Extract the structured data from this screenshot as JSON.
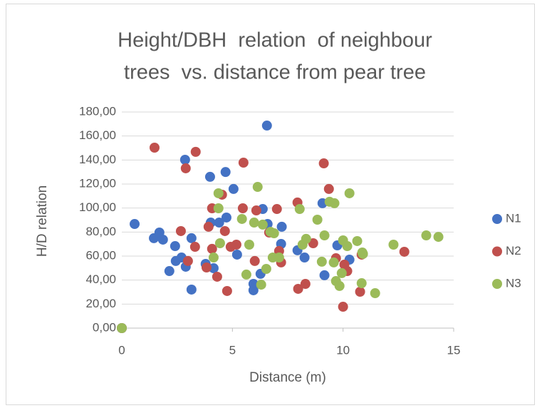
{
  "chart_data": {
    "type": "scatter",
    "title": [
      "Height/DBH  relation  of neighbour",
      "trees  vs. distance from pear tree"
    ],
    "xlabel": "Distance (m)",
    "ylabel": "H/D relation",
    "xlim": [
      0,
      15
    ],
    "xticks": [
      0,
      5,
      10,
      15
    ],
    "ylim": [
      0,
      180
    ],
    "yticks": [
      {
        "value": 0,
        "label": "0,00"
      },
      {
        "value": 20,
        "label": "20,00"
      },
      {
        "value": 40,
        "label": "40,00"
      },
      {
        "value": 60,
        "label": "60,00"
      },
      {
        "value": 80,
        "label": "80,00"
      },
      {
        "value": 100,
        "label": "100,00"
      },
      {
        "value": 120,
        "label": "120,00"
      },
      {
        "value": 140,
        "label": "140,00"
      },
      {
        "value": 160,
        "label": "160,00"
      },
      {
        "value": 180,
        "label": "180,00"
      }
    ],
    "grid": true,
    "legend": "right",
    "series": [
      {
        "name": "N1",
        "color": "#4472c4",
        "x": [
          0,
          0.58,
          1.45,
          1.7,
          1.86,
          2.15,
          2.41,
          2.44,
          2.7,
          2.86,
          2.89,
          3.15,
          3.15,
          3.79,
          3.99,
          4.02,
          4.15,
          4.4,
          4.69,
          4.73,
          5.05,
          5.21,
          5.95,
          5.95,
          6.27,
          6.37,
          6.56,
          6.59,
          7.2,
          7.23,
          7.94,
          8.26,
          9.07,
          9.16,
          9.74,
          10.29
        ],
        "values": [
          0,
          86.7,
          74.9,
          79.6,
          73.7,
          47.5,
          68.3,
          55.9,
          58.8,
          140.2,
          51.1,
          74.9,
          32.1,
          53.5,
          126,
          87.9,
          49.9,
          87.9,
          130,
          92.1,
          115.9,
          61.2,
          36.8,
          31.5,
          45.2,
          99.2,
          168.7,
          86.7,
          70.1,
          84.4,
          64.8,
          58.8,
          104,
          44,
          68.9,
          57
        ]
      },
      {
        "name": "N2",
        "color": "#c0504d",
        "x": [
          0,
          1.48,
          2.67,
          2.89,
          2.99,
          3.34,
          3.31,
          3.83,
          3.92,
          4.08,
          4.08,
          4.31,
          4.53,
          4.66,
          4.76,
          4.92,
          5.18,
          5.5,
          5.47,
          6.01,
          6.08,
          6.66,
          7.01,
          7.11,
          7.2,
          7.94,
          7.97,
          8.3,
          8.65,
          9.13,
          9.36,
          9.68,
          10.06,
          10.19,
          10,
          10.77,
          10.84,
          12.77
        ],
        "values": [
          0,
          150.3,
          80.8,
          133.1,
          55.9,
          146.8,
          67.7,
          50.5,
          84.4,
          99.8,
          66,
          42.8,
          111.1,
          80.8,
          30.9,
          67.7,
          69.5,
          137.8,
          99.8,
          55.9,
          98,
          79.6,
          99.2,
          64.2,
          54.7,
          104.6,
          32.7,
          36.8,
          70.7,
          137.2,
          115.9,
          58.2,
          52.9,
          47.5,
          17.8,
          30.3,
          61.2,
          63.6
        ]
      },
      {
        "name": "N3",
        "color": "#9bbb59",
        "x": [
          0,
          4.15,
          4.37,
          4.37,
          4.44,
          5.43,
          5.63,
          5.76,
          5.98,
          6.14,
          6.3,
          6.37,
          6.53,
          6.72,
          6.88,
          6.82,
          7.11,
          8.04,
          8.17,
          8.33,
          8.84,
          9.04,
          9.16,
          9.39,
          9.61,
          9.58,
          9.68,
          9.84,
          9.94,
          10,
          10.19,
          10.29,
          10.64,
          10.87,
          10.9,
          10.84,
          11.45,
          12.28,
          13.76,
          14.31
        ],
        "values": [
          0,
          58.8,
          112.3,
          99.8,
          70.7,
          90.9,
          44.6,
          69.5,
          87.9,
          117.6,
          36.2,
          86.2,
          49.3,
          80.2,
          79,
          58.8,
          58.8,
          99.2,
          69.5,
          74.3,
          90.3,
          55.3,
          77.2,
          105.2,
          104,
          54.7,
          39.2,
          35.1,
          45.8,
          73.1,
          68.3,
          112.3,
          72.5,
          63,
          61.8,
          37.4,
          29.1,
          69.5,
          77.2,
          76
        ]
      }
    ]
  }
}
